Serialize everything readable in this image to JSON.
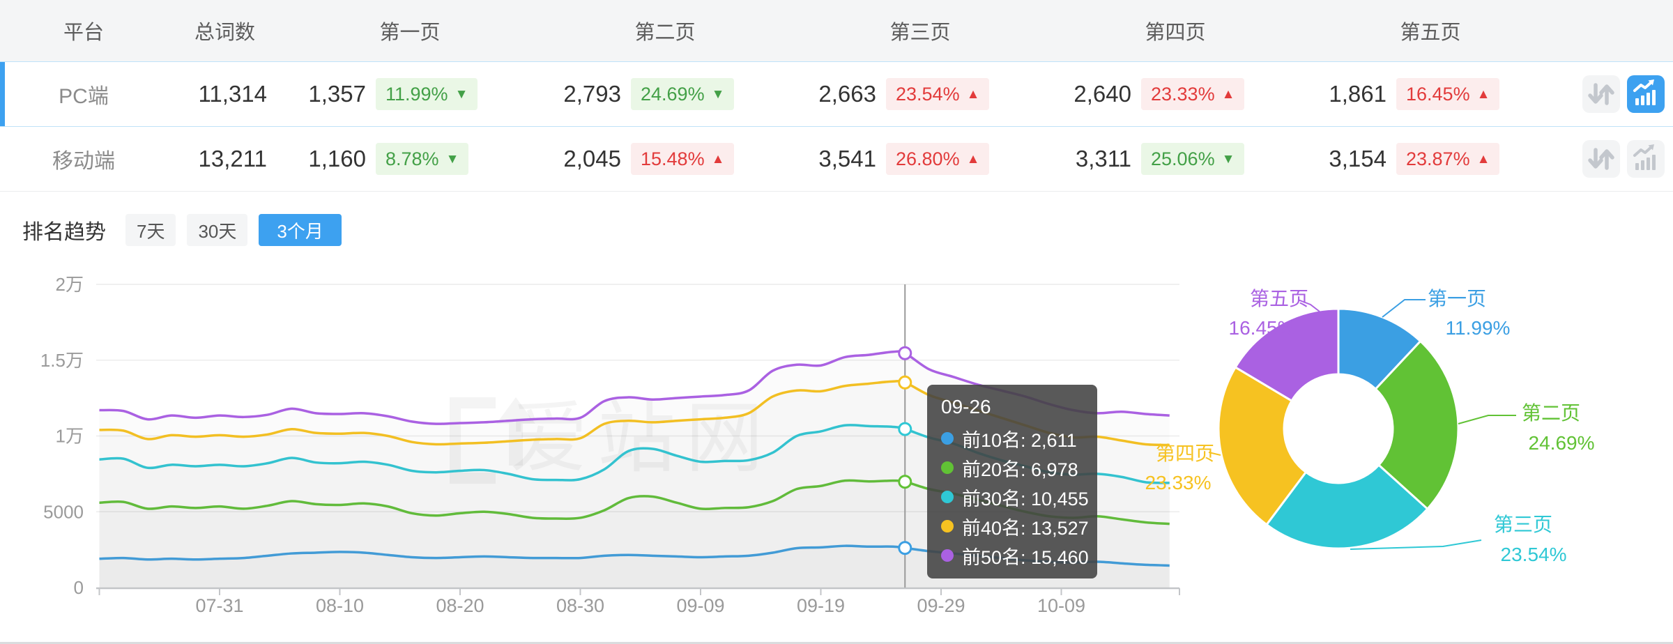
{
  "colors": {
    "accent_blue": "#3DA1F0",
    "good_green": "#43A047",
    "bad_red": "#E23B3B",
    "series": [
      "#3B9FE3",
      "#61C235",
      "#2FC8D5",
      "#F6C221",
      "#AA61E2"
    ]
  },
  "table": {
    "headers": [
      "平台",
      "总词数",
      "第一页",
      "第二页",
      "第三页",
      "第四页",
      "第五页"
    ],
    "icons": {
      "sort": "sort-arrows-icon",
      "trend": "trend-chart-icon"
    },
    "rows": [
      {
        "platform": "PC端",
        "total": "11,314",
        "selected": true,
        "trend_active": true,
        "pages": [
          {
            "count": "1,357",
            "pct": "11.99%",
            "arrow": "▼",
            "tone": "good"
          },
          {
            "count": "2,793",
            "pct": "24.69%",
            "arrow": "▼",
            "tone": "good"
          },
          {
            "count": "2,663",
            "pct": "23.54%",
            "arrow": "▲",
            "tone": "bad"
          },
          {
            "count": "2,640",
            "pct": "23.33%",
            "arrow": "▲",
            "tone": "bad"
          },
          {
            "count": "1,861",
            "pct": "16.45%",
            "arrow": "▲",
            "tone": "bad"
          }
        ]
      },
      {
        "platform": "移动端",
        "total": "13,211",
        "selected": false,
        "trend_active": false,
        "pages": [
          {
            "count": "1,160",
            "pct": "8.78%",
            "arrow": "▼",
            "tone": "good"
          },
          {
            "count": "2,045",
            "pct": "15.48%",
            "arrow": "▲",
            "tone": "bad"
          },
          {
            "count": "3,541",
            "pct": "26.80%",
            "arrow": "▲",
            "tone": "bad"
          },
          {
            "count": "3,311",
            "pct": "25.06%",
            "arrow": "▼",
            "tone": "good"
          },
          {
            "count": "3,154",
            "pct": "23.87%",
            "arrow": "▲",
            "tone": "bad"
          }
        ]
      }
    ]
  },
  "trend": {
    "title": "排名趋势",
    "tabs": [
      {
        "label": "7天",
        "active": false
      },
      {
        "label": "30天",
        "active": false
      },
      {
        "label": "3个月",
        "active": true
      }
    ]
  },
  "tooltip": {
    "title": "09-26",
    "rows": [
      {
        "text": "前10名: 2,611"
      },
      {
        "text": "前20名: 6,978"
      },
      {
        "text": "前30名: 10,455"
      },
      {
        "text": "前40名: 13,527"
      },
      {
        "text": "前50名: 15,460"
      }
    ]
  },
  "watermark": "爱站网",
  "chart_data": [
    {
      "type": "line",
      "title": "排名趋势 (3个月)",
      "ylim": [
        0,
        20000
      ],
      "grid": true,
      "legend_position": "none",
      "y_tick_labels": [
        "0",
        "5000",
        "1万",
        "1.5万",
        "2万"
      ],
      "y_tick_values": [
        0,
        5000,
        10000,
        15000,
        20000
      ],
      "x_tick_labels": [
        "07-31",
        "08-10",
        "08-20",
        "08-30",
        "09-09",
        "09-19",
        "09-29",
        "10-09"
      ],
      "highlight_date": "09-26",
      "dates": [
        "07-21",
        "07-23",
        "07-25",
        "07-27",
        "07-29",
        "07-31",
        "08-02",
        "08-04",
        "08-06",
        "08-08",
        "08-10",
        "08-12",
        "08-14",
        "08-16",
        "08-18",
        "08-20",
        "08-22",
        "08-24",
        "08-26",
        "08-28",
        "08-30",
        "09-01",
        "09-03",
        "09-05",
        "09-07",
        "09-09",
        "09-11",
        "09-13",
        "09-15",
        "09-17",
        "09-19",
        "09-21",
        "09-23",
        "09-25",
        "09-26",
        "09-28",
        "09-30",
        "10-02",
        "10-04",
        "10-06",
        "10-08",
        "10-10",
        "10-12",
        "10-14",
        "10-16",
        "10-18"
      ],
      "series": [
        {
          "name": "前10名",
          "color": "#3B9FE3",
          "values": [
            1900,
            1950,
            1850,
            1900,
            1850,
            1900,
            1950,
            2100,
            2250,
            2300,
            2350,
            2300,
            2150,
            2000,
            1950,
            2000,
            2050,
            2000,
            1950,
            1950,
            1950,
            2100,
            2150,
            2100,
            2050,
            2000,
            2050,
            2100,
            2300,
            2600,
            2650,
            2750,
            2700,
            2700,
            2611,
            2400,
            2250,
            2100,
            1950,
            1800,
            1700,
            1650,
            1700,
            1600,
            1500,
            1450
          ]
        },
        {
          "name": "前20名",
          "color": "#61C235",
          "values": [
            5600,
            5650,
            5200,
            5350,
            5250,
            5350,
            5200,
            5400,
            5700,
            5500,
            5450,
            5550,
            5350,
            4900,
            4750,
            4900,
            5000,
            4850,
            4600,
            4550,
            4600,
            5100,
            5900,
            6000,
            5600,
            5200,
            5250,
            5300,
            5700,
            6500,
            6700,
            7050,
            7000,
            7050,
            6978,
            6500,
            6200,
            5800,
            5400,
            5000,
            4700,
            4600,
            4700,
            4500,
            4300,
            4200
          ]
        },
        {
          "name": "前30名",
          "color": "#2FC8D5",
          "values": [
            8450,
            8500,
            7900,
            8100,
            8000,
            8100,
            8000,
            8200,
            8550,
            8250,
            8200,
            8300,
            8100,
            7700,
            7600,
            7700,
            7750,
            7500,
            7150,
            7100,
            7150,
            7800,
            9000,
            9150,
            8700,
            8300,
            8350,
            8400,
            8900,
            10000,
            10300,
            10700,
            10650,
            10600,
            10455,
            9900,
            9500,
            8900,
            8400,
            8000,
            7600,
            7450,
            7500,
            7300,
            6950,
            6900
          ]
        },
        {
          "name": "前40名",
          "color": "#F6C221",
          "values": [
            10400,
            10350,
            9800,
            10050,
            9950,
            10050,
            9950,
            10100,
            10450,
            10200,
            10150,
            10200,
            10000,
            9600,
            9450,
            9500,
            9550,
            9650,
            9750,
            9800,
            9850,
            10800,
            11000,
            10900,
            11000,
            11100,
            11200,
            11500,
            12600,
            13000,
            12950,
            13300,
            13450,
            13600,
            13527,
            12700,
            12200,
            11700,
            11200,
            10700,
            10200,
            9900,
            9950,
            9700,
            9450,
            9400
          ]
        },
        {
          "name": "前50名",
          "color": "#AA61E2",
          "values": [
            11700,
            11650,
            11100,
            11350,
            11200,
            11350,
            11250,
            11400,
            11800,
            11500,
            11450,
            11500,
            11300,
            10950,
            10800,
            10850,
            10900,
            11000,
            11100,
            11150,
            11200,
            12300,
            12550,
            12400,
            12500,
            12600,
            12700,
            13000,
            14300,
            14700,
            14650,
            15200,
            15350,
            15550,
            15460,
            14400,
            13900,
            13400,
            13000,
            12600,
            12100,
            11700,
            11500,
            11600,
            11450,
            11350
          ]
        }
      ]
    },
    {
      "type": "pie",
      "donut": true,
      "start_angle": "top",
      "direction": "clockwise",
      "slices": [
        {
          "name": "第一页",
          "value_pct": 11.99,
          "label": "11.99%",
          "color": "#3B9FE3"
        },
        {
          "name": "第二页",
          "value_pct": 24.69,
          "label": "24.69%",
          "color": "#61C235"
        },
        {
          "name": "第三页",
          "value_pct": 23.54,
          "label": "23.54%",
          "color": "#2FC8D5"
        },
        {
          "name": "第四页",
          "value_pct": 23.33,
          "label": "23.33%",
          "color": "#F6C221"
        },
        {
          "name": "第五页",
          "value_pct": 16.45,
          "label": "16.45%",
          "color": "#AA61E2"
        }
      ]
    }
  ]
}
